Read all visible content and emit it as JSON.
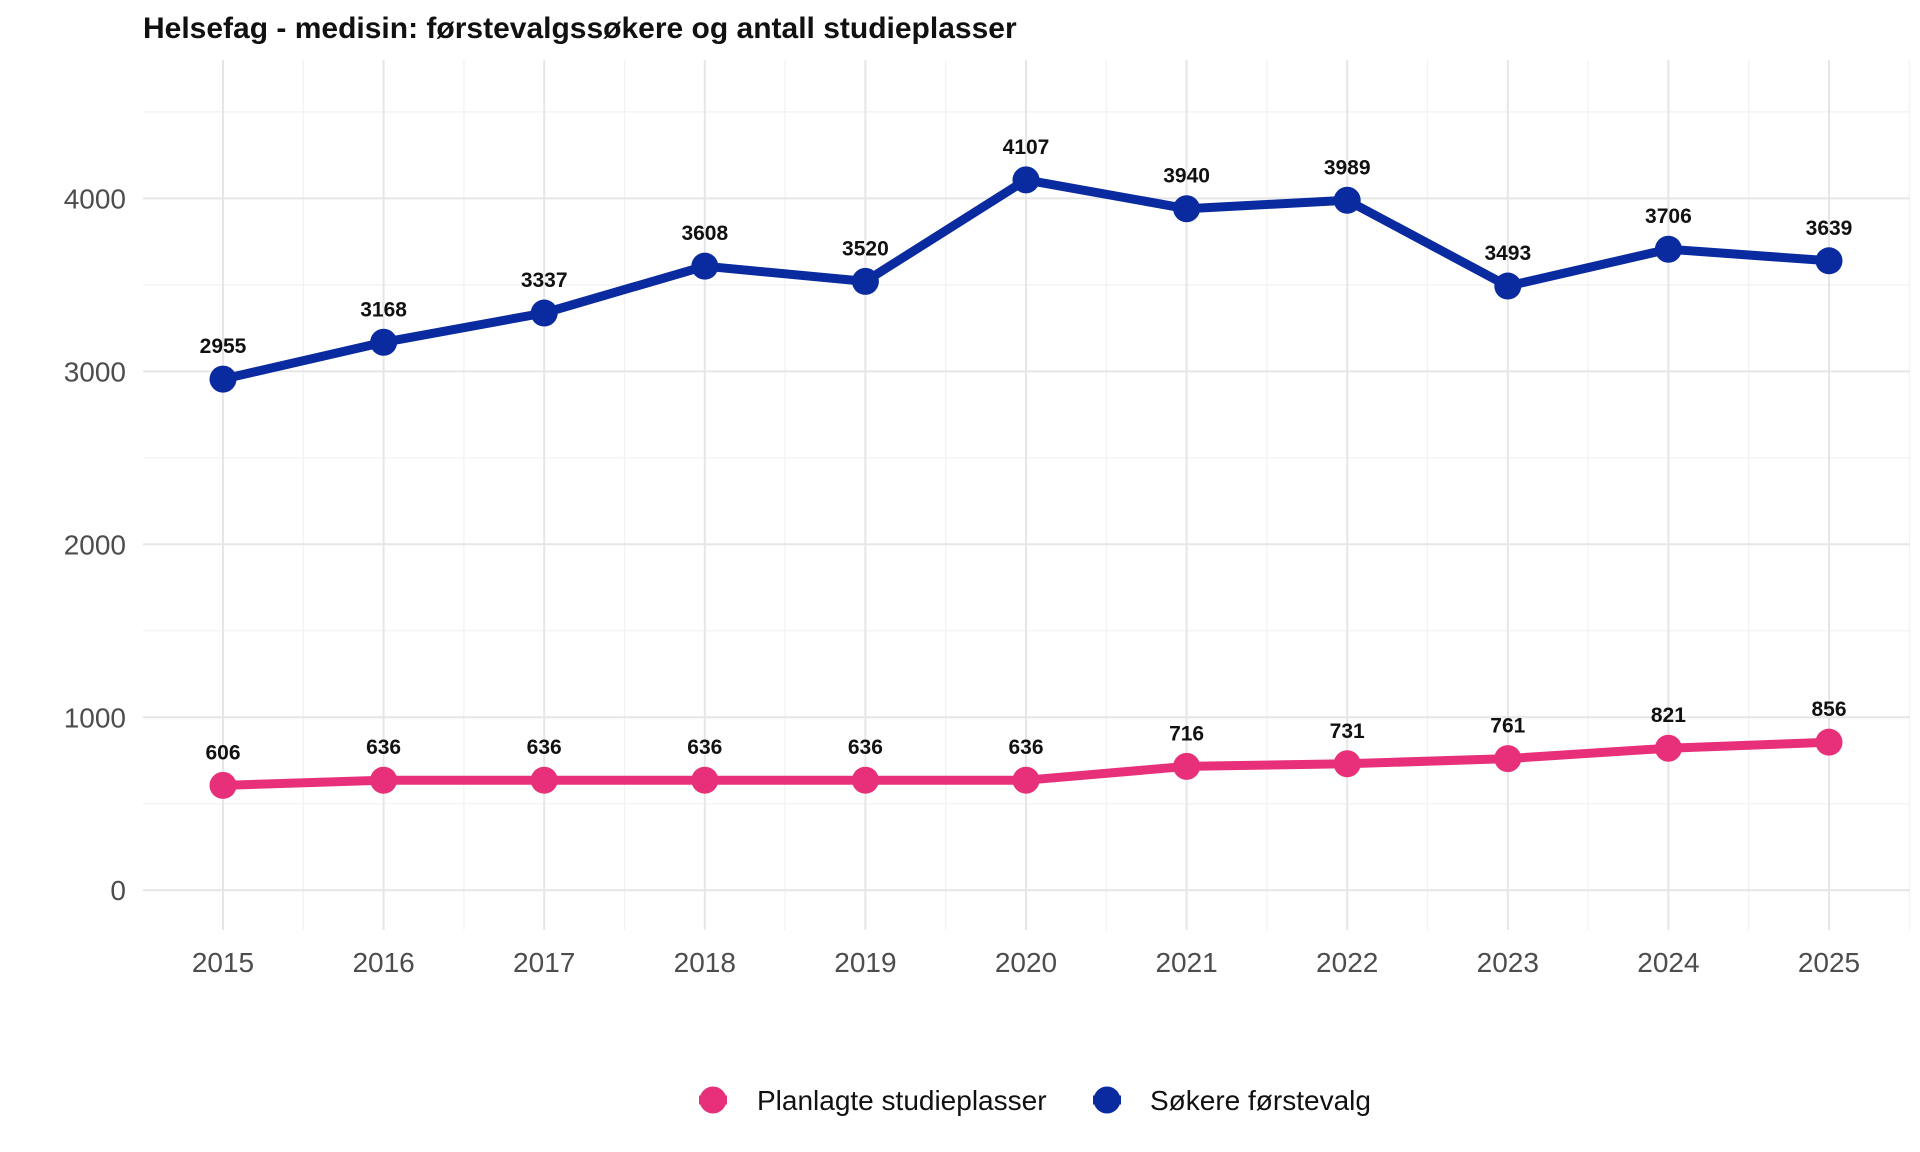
{
  "chart_data": {
    "type": "line",
    "title": "Helsefag - medisin: førstevalgssøkere og antall studieplasser",
    "xlabel": "",
    "ylabel": "",
    "x": [
      "2015",
      "2016",
      "2017",
      "2018",
      "2019",
      "2020",
      "2021",
      "2022",
      "2023",
      "2024",
      "2025"
    ],
    "y_ticks": [
      "0",
      "1000",
      "2000",
      "3000",
      "4000"
    ],
    "ylim": [
      -230,
      4800
    ],
    "grid": true,
    "legend_position": "bottom",
    "series": [
      {
        "name": "Planlagte studieplasser",
        "color": "#e8307a",
        "values": [
          606,
          636,
          636,
          636,
          636,
          636,
          716,
          731,
          761,
          821,
          856
        ],
        "labels": [
          "606",
          "636",
          "636",
          "636",
          "636",
          "636",
          "716",
          "731",
          "761",
          "821",
          "856"
        ]
      },
      {
        "name": "Søkere førstevalg",
        "color": "#0a2aa0",
        "values": [
          2955,
          3168,
          3337,
          3608,
          3520,
          4107,
          3940,
          3989,
          3493,
          3706,
          3639
        ],
        "labels": [
          "2955",
          "3168",
          "3337",
          "3608",
          "3520",
          "4107",
          "3940",
          "3989",
          "3493",
          "3706",
          "3639"
        ]
      }
    ]
  }
}
